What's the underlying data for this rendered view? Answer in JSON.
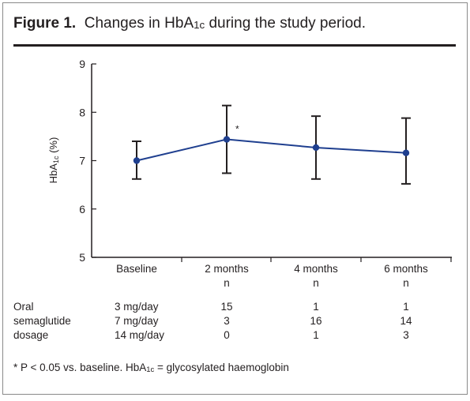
{
  "figure": {
    "label": "Figure 1.",
    "caption_pre": "Changes in HbA",
    "caption_sub": "1c",
    "caption_post": " during the study period."
  },
  "chart_data": {
    "type": "line",
    "categories": [
      "Baseline",
      "2 months",
      "4 months",
      "6 months"
    ],
    "values": [
      7.0,
      7.44,
      7.27,
      7.16
    ],
    "error_bars": [
      {
        "low": 6.62,
        "high": 7.4
      },
      {
        "low": 6.74,
        "high": 8.14
      },
      {
        "low": 6.62,
        "high": 7.92
      },
      {
        "low": 6.52,
        "high": 7.88
      }
    ],
    "ylabel_pre": "HbA",
    "ylabel_sub": "1c",
    "ylabel_post": " (%)",
    "ylim": [
      5,
      9
    ],
    "yticks": [
      5,
      6,
      7,
      8,
      9
    ],
    "annotations": [
      {
        "category": "2 months",
        "text": "*"
      }
    ],
    "n_label": "n",
    "line_color": "#1f3f8f",
    "grid": false
  },
  "dosage_table": {
    "row_label_lines": [
      "Oral",
      "semaglutide",
      "dosage"
    ],
    "rows": [
      {
        "dose": "3 mg/day",
        "counts": [
          "15",
          "1",
          "1"
        ]
      },
      {
        "dose": "7 mg/day",
        "counts": [
          "3",
          "16",
          "14"
        ]
      },
      {
        "dose": "14 mg/day",
        "counts": [
          "0",
          "1",
          "3"
        ]
      }
    ]
  },
  "footnote": {
    "pre": "* P < 0.05 vs. baseline. HbA",
    "sub": "1c",
    "post": " = glycosylated haemoglobin"
  }
}
